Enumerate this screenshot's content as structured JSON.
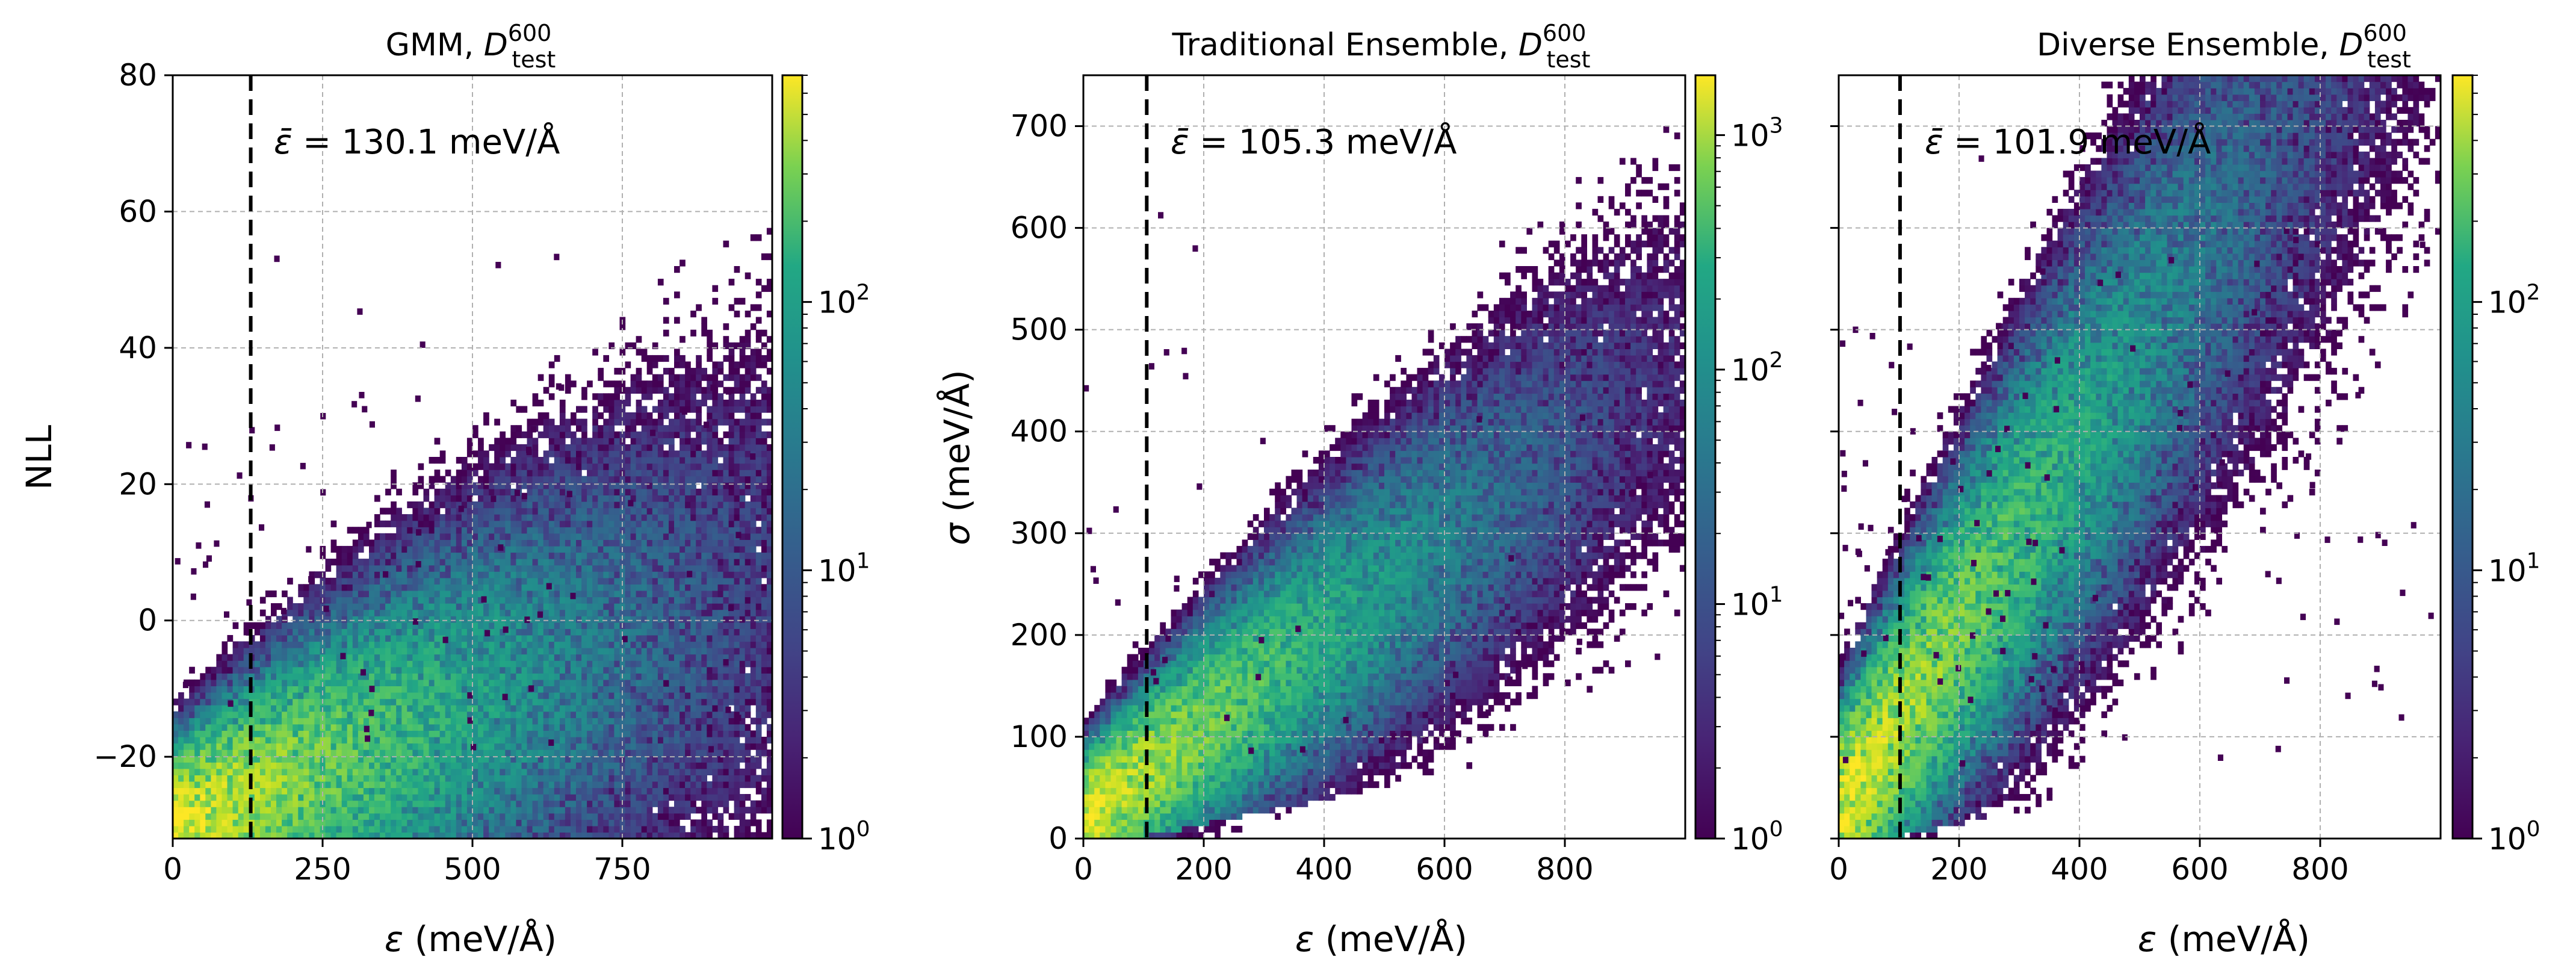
{
  "figure": {
    "description_colormap": "viridis"
  },
  "chart_data": [
    {
      "type": "heatmap",
      "title": "GMM, D_test^600",
      "title_parts": {
        "main": "GMM, ",
        "symbol": "D",
        "sub": "test",
        "sup": "600"
      },
      "xlabel": "ε (meV/Å)",
      "xlabel_parts": {
        "symbol": "ε",
        "unit": " (meV/Å)"
      },
      "ylabel": "NLL",
      "xlim": [
        0,
        1000
      ],
      "ylim": [
        -32,
        80
      ],
      "xticks": [
        0,
        250,
        500,
        750
      ],
      "xtick_labels": [
        "0",
        "250",
        "500",
        "750"
      ],
      "yticks": [
        -20,
        0,
        20,
        40,
        60,
        80
      ],
      "ytick_labels": [
        "−20",
        "0",
        "20",
        "40",
        "60",
        "80"
      ],
      "mean_line_x": 130.1,
      "annotation": "ε̄ = 130.1 meV/Å",
      "annotation_parts": {
        "symbol": "ε̄",
        "rest": " = 130.1 meV/Å"
      },
      "colorbar": {
        "scale": "log",
        "min": 1,
        "max": 700,
        "ticks": [
          1,
          10,
          100
        ],
        "tick_labels": [
          "10^0",
          "10^1",
          "10^2"
        ]
      },
      "density": {
        "x_mode": 40,
        "y_mode": -28,
        "x_decay": 190,
        "y_base": -30,
        "y_slope": 0.035,
        "y_spread": 11,
        "peak_count": 600,
        "outliers": 90
      }
    },
    {
      "type": "heatmap",
      "title": "Traditional Ensemble, D_test^600",
      "title_parts": {
        "main": "Traditional Ensemble, ",
        "symbol": "D",
        "sub": "test",
        "sup": "600"
      },
      "xlabel": "ε (meV/Å)",
      "xlabel_parts": {
        "symbol": "ε",
        "unit": " (meV/Å)"
      },
      "ylabel": "σ (meV/Å)",
      "ylabel_parts": {
        "symbol": "σ",
        "unit": " (meV/Å)"
      },
      "xlim": [
        0,
        1000
      ],
      "ylim": [
        0,
        750
      ],
      "xticks": [
        0,
        200,
        400,
        600,
        800
      ],
      "xtick_labels": [
        "0",
        "200",
        "400",
        "600",
        "800"
      ],
      "yticks": [
        0,
        100,
        200,
        300,
        400,
        500,
        600,
        700
      ],
      "ytick_labels": [
        "0",
        "100",
        "200",
        "300",
        "400",
        "500",
        "600",
        "700"
      ],
      "mean_line_x": 105.3,
      "annotation": "ε̄ = 105.3 meV/Å",
      "annotation_parts": {
        "symbol": "ε̄",
        "rest": " = 105.3 meV/Å"
      },
      "colorbar": {
        "scale": "log",
        "min": 1,
        "max": 1800,
        "ticks": [
          1,
          10,
          100,
          1000
        ],
        "tick_labels": [
          "10^0",
          "10^1",
          "10^2",
          "10^3"
        ]
      },
      "density": {
        "x_mode": 30,
        "y_mode": 30,
        "x_decay": 150,
        "y_base": 20,
        "y_slope": 0.45,
        "y_spread": 55,
        "peak_count": 1500,
        "outliers": 40
      }
    },
    {
      "type": "heatmap",
      "title": "Diverse Ensemble, D_test^600",
      "title_parts": {
        "main": "Diverse Ensemble, ",
        "symbol": "D",
        "sub": "test",
        "sup": "600"
      },
      "xlabel": "ε (meV/Å)",
      "xlabel_parts": {
        "symbol": "ε",
        "unit": " (meV/Å)"
      },
      "ylabel": "",
      "xlim": [
        0,
        1000
      ],
      "ylim": [
        0,
        750
      ],
      "xticks": [
        0,
        200,
        400,
        600,
        800
      ],
      "xtick_labels": [
        "0",
        "200",
        "400",
        "600",
        "800"
      ],
      "yticks": [
        0,
        100,
        200,
        300,
        400,
        500,
        600,
        700
      ],
      "ytick_labels": [],
      "mean_line_x": 101.9,
      "annotation": "ε̄ = 101.9 meV/Å",
      "annotation_parts": {
        "symbol": "ε̄",
        "rest": " = 101.9 meV/Å"
      },
      "colorbar": {
        "scale": "log",
        "min": 1,
        "max": 700,
        "ticks": [
          1,
          10,
          100
        ],
        "tick_labels": [
          "10^0",
          "10^1",
          "10^2"
        ]
      },
      "density": {
        "x_mode": 30,
        "y_mode": 40,
        "x_decay": 160,
        "y_base": 25,
        "y_slope": 0.9,
        "y_spread": 90,
        "peak_count": 600,
        "outliers": 110
      }
    }
  ]
}
